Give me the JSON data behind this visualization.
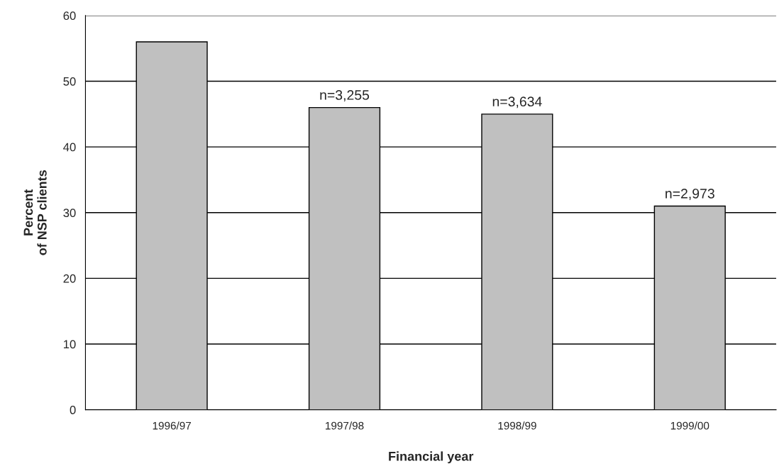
{
  "chart_data": {
    "type": "bar",
    "xlabel": "Financial year",
    "ylabel": "Percent\nof NSP clients",
    "categories": [
      "1996/97",
      "1997/98",
      "1998/99",
      "1999/00"
    ],
    "values": [
      56,
      46,
      45,
      31
    ],
    "color": "#c0c0c0",
    "ylim": [
      0,
      60
    ],
    "yticks": [
      0,
      10,
      20,
      30,
      40,
      50,
      60
    ],
    "grid": "y",
    "annotations": [
      {
        "text": "n=3,255",
        "x": "1997/98",
        "y": 46
      },
      {
        "text": "n=3,634",
        "x": "1998/99",
        "y": 45
      },
      {
        "text": "n=2,973",
        "x": "1999/00",
        "y": 31
      }
    ]
  }
}
